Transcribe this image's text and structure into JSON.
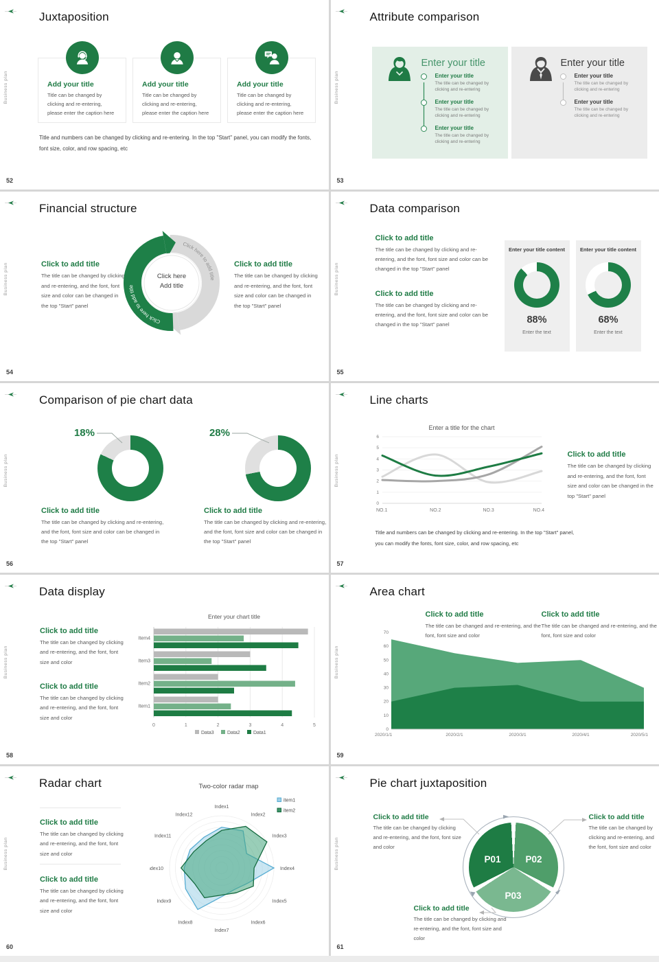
{
  "shared": {
    "vertical_label": "Business plan",
    "click_title": "Click to add title",
    "enter_title": "Enter your title",
    "body_full": "The title can be changed by clicking and re-entering, and the font, font size and color can be changed in the top \"Start\" panel",
    "body_short": "The title can be changed by clicking and re-entering, and the font, font size and color",
    "body_area": "The title can be changed and re-entering, and the font, font size and color",
    "body_item": "The title can be changed by clicking and re-entering",
    "footer_note": "Title and numbers can be changed by clicking and re-entering. In the top \"Start\" panel, you can modify the fonts, font size, color, and row spacing, etc"
  },
  "colors": {
    "accent_dark_green": "#1f7b45",
    "mid_green": "#4f9e6a",
    "light_green": "#7ab890",
    "panel_green_bg": "#e3efe7",
    "panel_gray_bg": "#ececec"
  },
  "slides": {
    "s52": {
      "num": "52",
      "title": "Juxtaposition",
      "card_title": "Add your title",
      "card_body": "Title can be changed by clicking and re-entering, please enter the caption here"
    },
    "s53": {
      "num": "53",
      "title": "Attribute comparison",
      "panel_title": "Enter your title",
      "item_title": "Enter your title"
    },
    "s54": {
      "num": "54",
      "title": "Financial structure",
      "arc_label": "Click here to add title",
      "center_line1": "Click here",
      "center_line2": "Add title"
    },
    "s55": {
      "num": "55",
      "title": "Data comparison",
      "card_title": "Enter your title content",
      "pct1": "88%",
      "pct2": "68%",
      "card_caption": "Enter the text"
    },
    "s56": {
      "num": "56",
      "title": "Comparison of pie chart data",
      "pct1": "18%",
      "pct2": "28%"
    },
    "s57": {
      "num": "57",
      "title": "Line charts"
    },
    "s58": {
      "num": "58",
      "title": "Data display"
    },
    "s59": {
      "num": "59",
      "title": "Area chart"
    },
    "s60": {
      "num": "60",
      "title": "Radar chart"
    },
    "s61": {
      "num": "61",
      "title": "Pie chart juxtaposition"
    }
  },
  "chart_data": {
    "donuts55": {
      "type": "donut",
      "color": "#1e8048",
      "track": "#ffffff",
      "hole": "#efefef",
      "values": [
        88,
        68
      ],
      "labels": [
        "88%",
        "68%"
      ]
    },
    "donuts56": {
      "type": "donut",
      "color": "#1e8048",
      "track": "#e0e0e0",
      "hole": "#ffffff",
      "values": [
        18,
        28
      ],
      "labels": [
        "18%",
        "28%"
      ]
    },
    "line57": {
      "type": "line",
      "title": "Enter a title for the chart",
      "x": [
        "NO.1",
        "NO.2",
        "NO.3",
        "NO.4"
      ],
      "ylim": [
        0,
        6
      ],
      "yticks": [
        0,
        1,
        2,
        3,
        4,
        5,
        6
      ],
      "series": [
        {
          "name": "series-light-gray",
          "color": "#d8d8d8",
          "values": [
            2.4,
            4.4,
            1.9,
            2.9
          ]
        },
        {
          "name": "series-gray",
          "color": "#a6a6a6",
          "values": [
            2.1,
            2.0,
            2.6,
            5.1
          ]
        },
        {
          "name": "series-green",
          "color": "#1e7c44",
          "values": [
            4.3,
            2.5,
            3.3,
            4.5
          ]
        }
      ]
    },
    "bar58": {
      "type": "bar",
      "title": "Enter your chart title",
      "categories": [
        "Item1",
        "Item2",
        "Item3",
        "Item4"
      ],
      "xlim": [
        0,
        5
      ],
      "xticks": [
        0,
        1,
        2,
        3,
        4,
        5
      ],
      "series": [
        {
          "name": "Data1",
          "color": "#1e7c44",
          "values": [
            4.3,
            2.5,
            3.5,
            4.5
          ]
        },
        {
          "name": "Data2",
          "color": "#74b189",
          "values": [
            2.4,
            4.4,
            1.8,
            2.8
          ]
        },
        {
          "name": "Data3",
          "color": "#b9b9b9",
          "values": [
            2.0,
            2.0,
            3.0,
            4.8
          ]
        }
      ],
      "legend_order": [
        "Data3",
        "Data2",
        "Data1"
      ]
    },
    "area59": {
      "type": "area",
      "x": [
        "2020/1/1",
        "2020/2/1",
        "2020/3/1",
        "2020/4/1",
        "2020/5/1"
      ],
      "ylim": [
        0,
        70
      ],
      "yticks": [
        0,
        10,
        20,
        30,
        40,
        50,
        60,
        70
      ],
      "series": [
        {
          "name": "upper",
          "color": "#57a87a",
          "values": [
            65,
            55,
            48,
            50,
            30
          ]
        },
        {
          "name": "lower",
          "color": "#1e8048",
          "values": [
            20,
            30,
            32,
            20,
            20
          ]
        }
      ]
    },
    "radar60": {
      "type": "radar",
      "title": "Two-color radar map",
      "axes": [
        "Index1",
        "Index2",
        "Index3",
        "Index4",
        "Index5",
        "Index6",
        "Index7",
        "Index8",
        "Index9",
        "Index10",
        "Index11",
        "Index12"
      ],
      "max": 1,
      "series": [
        {
          "name": "item1",
          "color": "#56acd2",
          "swatch": "#9fd0e8",
          "fill": "rgba(150,205,230,0.5)",
          "values": [
            0.78,
            0.82,
            0.55,
            1.0,
            0.58,
            0.48,
            0.55,
            0.92,
            0.8,
            0.72,
            0.7,
            0.68
          ]
        },
        {
          "name": "item2",
          "color": "#156b40",
          "swatch": "#3f9468",
          "fill": "rgba(70,165,125,0.55)",
          "values": [
            0.72,
            0.92,
            1.0,
            0.62,
            0.7,
            0.55,
            0.52,
            0.66,
            0.6,
            0.78,
            0.62,
            0.6
          ]
        }
      ]
    },
    "pie61": {
      "type": "pie",
      "slices": [
        {
          "label": "P01",
          "value": 33.3,
          "color": "#1e7c44"
        },
        {
          "label": "P02",
          "value": 33.3,
          "color": "#4f9e6a"
        },
        {
          "label": "P03",
          "value": 33.3,
          "color": "#7ab890"
        }
      ]
    }
  }
}
